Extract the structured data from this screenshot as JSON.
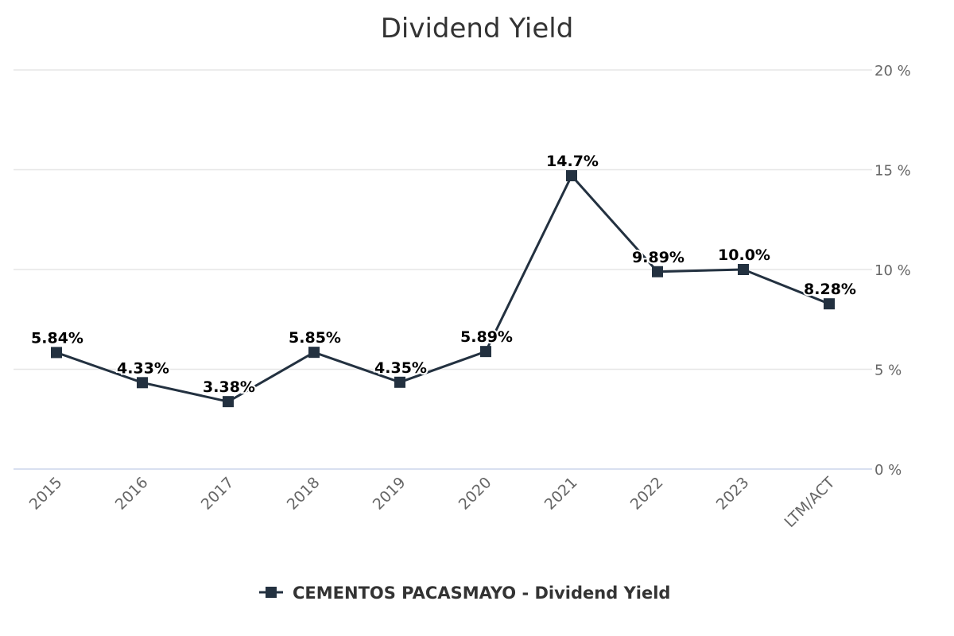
{
  "chart_data": {
    "type": "line",
    "title": "Dividend Yield",
    "categories": [
      "2015",
      "2016",
      "2017",
      "2018",
      "2019",
      "2020",
      "2021",
      "2022",
      "2023",
      "LTM/ACT"
    ],
    "series": [
      {
        "name": "CEMENTOS PACASMAYO - Dividend Yield",
        "values": [
          5.84,
          4.33,
          3.38,
          5.85,
          4.35,
          5.89,
          14.7,
          9.89,
          10.0,
          8.28
        ],
        "labels": [
          "5.84%",
          "4.33%",
          "3.38%",
          "5.85%",
          "4.35%",
          "5.89%",
          "14.7%",
          "9.89%",
          "10.0%",
          "8.28%"
        ],
        "color": "#233140",
        "marker": "square"
      }
    ],
    "yticks": [
      "0 %",
      "5 %",
      "10 %",
      "15 %",
      "20 %"
    ],
    "ytick_values": [
      0,
      5,
      10,
      15,
      20
    ],
    "ylim": [
      0,
      20
    ],
    "yaxis_position": "right",
    "xlabel": "",
    "ylabel": "",
    "grid": true,
    "legend_position": "bottom-center",
    "gridline_color": "#e6e6e6"
  }
}
